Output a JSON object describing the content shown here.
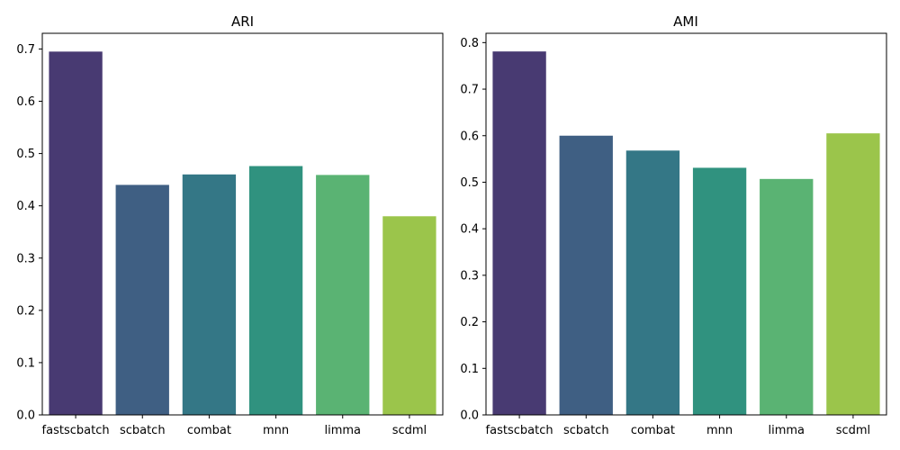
{
  "chart_data": [
    {
      "type": "bar",
      "title": "ARI",
      "xlabel": "",
      "ylabel": "",
      "categories": [
        "fastscbatch",
        "scbatch",
        "combat",
        "mnn",
        "limma",
        "scdml"
      ],
      "values": [
        0.695,
        0.44,
        0.46,
        0.476,
        0.459,
        0.38
      ],
      "ylim": [
        0,
        0.73
      ],
      "yticks": [
        "0.0",
        "0.1",
        "0.2",
        "0.3",
        "0.4",
        "0.5",
        "0.6",
        "0.7"
      ],
      "colors": [
        "#483a72",
        "#3f5f83",
        "#347786",
        "#30927f",
        "#5ab373",
        "#9bc54b"
      ],
      "grid": false,
      "legend": "none"
    },
    {
      "type": "bar",
      "title": "AMI",
      "xlabel": "",
      "ylabel": "",
      "categories": [
        "fastscbatch",
        "scbatch",
        "combat",
        "mnn",
        "limma",
        "scdml"
      ],
      "values": [
        0.781,
        0.6,
        0.568,
        0.531,
        0.507,
        0.605
      ],
      "ylim": [
        0,
        0.82
      ],
      "yticks": [
        "0.0",
        "0.1",
        "0.2",
        "0.3",
        "0.4",
        "0.5",
        "0.6",
        "0.7",
        "0.8"
      ],
      "colors": [
        "#483a72",
        "#3f5f83",
        "#347786",
        "#30927f",
        "#5ab373",
        "#9bc54b"
      ],
      "grid": false,
      "legend": "none"
    }
  ]
}
